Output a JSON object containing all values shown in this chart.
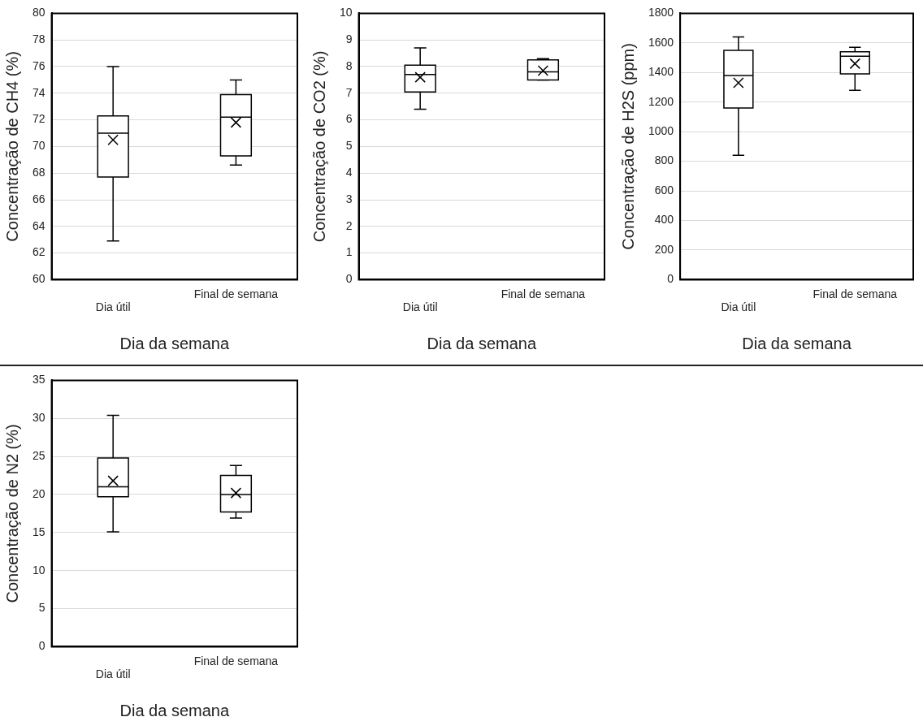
{
  "chart_data": [
    {
      "type": "box",
      "categories": [
        "Dia útil",
        "Final de semana"
      ],
      "xlabel": "Dia da semana",
      "ylabel": "Concentração de CH4 (%)",
      "ylim": [
        60,
        80
      ],
      "yticks": [
        60,
        62,
        64,
        66,
        68,
        70,
        72,
        74,
        76,
        78,
        80
      ],
      "grid": "y",
      "boxes": [
        {
          "low": 62.9,
          "q1": 67.7,
          "median": 71,
          "q3": 72.3,
          "high": 76,
          "mean": 70.5
        },
        {
          "low": 68.6,
          "q1": 69.3,
          "median": 72.2,
          "q3": 73.9,
          "high": 75,
          "mean": 71.8
        }
      ]
    },
    {
      "type": "box",
      "categories": [
        "Dia útil",
        "Final de semana"
      ],
      "xlabel": "Dia da semana",
      "ylabel": "Concentração de CO2 (%)",
      "ylim": [
        0,
        10
      ],
      "yticks": [
        0,
        1,
        2,
        3,
        4,
        5,
        6,
        7,
        8,
        9,
        10
      ],
      "grid": "y",
      "boxes": [
        {
          "low": 6.4,
          "q1": 7.05,
          "median": 7.7,
          "q3": 8.05,
          "high": 8.7,
          "mean": 7.6
        },
        {
          "low": 7.5,
          "q1": 7.5,
          "median": 7.8,
          "q3": 8.25,
          "high": 8.3,
          "mean": 7.85
        }
      ]
    },
    {
      "type": "box",
      "categories": [
        "Dia útil",
        "Final de semana"
      ],
      "xlabel": "Dia da semana",
      "ylabel": "Concentração de H2S (ppm)",
      "ylim": [
        0,
        1800
      ],
      "yticks": [
        0,
        200,
        400,
        600,
        800,
        1000,
        1200,
        1400,
        1600,
        1800
      ],
      "grid": "y",
      "boxes": [
        {
          "low": 840,
          "q1": 1160,
          "median": 1380,
          "q3": 1550,
          "high": 1640,
          "mean": 1330
        },
        {
          "low": 1280,
          "q1": 1390,
          "median": 1510,
          "q3": 1540,
          "high": 1570,
          "mean": 1460
        }
      ]
    },
    {
      "type": "box",
      "categories": [
        "Dia útil",
        "Final de semana"
      ],
      "xlabel": "Dia da semana",
      "ylabel": "Concentração de N2 (%)",
      "ylim": [
        0,
        35
      ],
      "yticks": [
        0,
        5,
        10,
        15,
        20,
        25,
        30,
        35
      ],
      "grid": "y",
      "boxes": [
        {
          "low": 15.1,
          "q1": 19.7,
          "median": 21,
          "q3": 24.8,
          "high": 30.4,
          "mean": 21.8
        },
        {
          "low": 16.9,
          "q1": 17.7,
          "median": 20,
          "q3": 22.5,
          "high": 23.8,
          "mean": 20.2
        }
      ]
    }
  ]
}
